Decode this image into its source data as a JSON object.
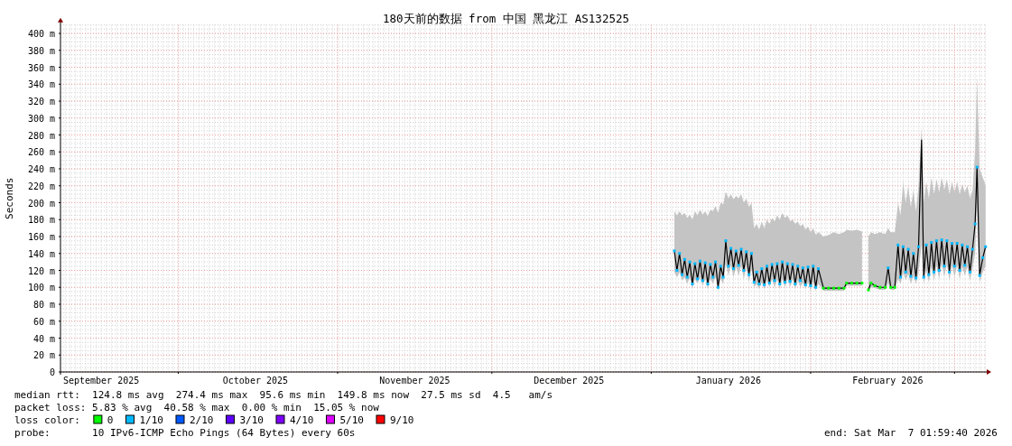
{
  "chart_data": {
    "type": "line",
    "title": "180天前的数据 from 中国 黑龙江 AS132525",
    "ylabel": "Seconds",
    "xlim": [
      "2025-09-08T02:00",
      "2026-03-07T02:00"
    ],
    "xticks": [
      {
        "value": "2025-10-01",
        "label": null
      },
      {
        "value": "2025-11-01",
        "label": null
      },
      {
        "value": "2025-12-01",
        "label": null
      },
      {
        "value": "2026-01-01",
        "label": null
      },
      {
        "value": "2026-02-01",
        "label": null
      },
      {
        "value": "2026-03-01",
        "label": null
      },
      {
        "value": "2025-09-16",
        "label": "September 2025"
      },
      {
        "value": "2025-10-16",
        "label": "October 2025"
      },
      {
        "value": "2025-11-16",
        "label": "November 2025"
      },
      {
        "value": "2025-12-16",
        "label": "December 2025"
      },
      {
        "value": "2026-01-16",
        "label": "January 2026"
      },
      {
        "value": "2026-02-16",
        "label": "February 2026"
      }
    ],
    "ylim": [
      0,
      410
    ],
    "yticks": [
      0,
      {
        "value": 20,
        "label": "20 m"
      },
      {
        "value": 40,
        "label": "40 m"
      },
      {
        "value": 60,
        "label": "60 m"
      },
      {
        "value": 80,
        "label": "80 m"
      },
      {
        "value": 100,
        "label": "100 m"
      },
      {
        "value": 120,
        "label": "120 m"
      },
      {
        "value": 140,
        "label": "140 m"
      },
      {
        "value": 160,
        "label": "160 m"
      },
      {
        "value": 180,
        "label": "180 m"
      },
      {
        "value": 200,
        "label": "200 m"
      },
      {
        "value": 220,
        "label": "220 m"
      },
      {
        "value": 240,
        "label": "240 m"
      },
      {
        "value": 260,
        "label": "260 m"
      },
      {
        "value": 280,
        "label": "280 m"
      },
      {
        "value": 300,
        "label": "300 m"
      },
      {
        "value": 320,
        "label": "320 m"
      },
      {
        "value": 340,
        "label": "340 m"
      },
      {
        "value": 360,
        "label": "360 m"
      },
      {
        "value": 380,
        "label": "380 m"
      },
      {
        "value": 400,
        "label": "400 m"
      }
    ],
    "grid": true,
    "legend": "bottom",
    "legend_title": "loss color:",
    "x": [
      "2026-01-05T12:00",
      "2026-01-06T00:00",
      "2026-01-06T12:00",
      "2026-01-07T00:00",
      "2026-01-07T12:00",
      "2026-01-08T00:00",
      "2026-01-08T12:00",
      "2026-01-09T00:00",
      "2026-01-09T12:00",
      "2026-01-10T00:00",
      "2026-01-10T12:00",
      "2026-01-11T00:00",
      "2026-01-11T12:00",
      "2026-01-12T00:00",
      "2026-01-12T12:00",
      "2026-01-13T00:00",
      "2026-01-13T12:00",
      "2026-01-14T00:00",
      "2026-01-14T12:00",
      "2026-01-15T00:00",
      "2026-01-15T12:00",
      "2026-01-16T00:00",
      "2026-01-16T12:00",
      "2026-01-17T00:00",
      "2026-01-17T12:00",
      "2026-01-18T00:00",
      "2026-01-18T12:00",
      "2026-01-19T00:00",
      "2026-01-19T12:00",
      "2026-01-20T00:00",
      "2026-01-20T12:00",
      "2026-01-21T00:00",
      "2026-01-21T12:00",
      "2026-01-22T00:00",
      "2026-01-22T12:00",
      "2026-01-23T00:00",
      "2026-01-23T12:00",
      "2026-01-24T00:00",
      "2026-01-24T12:00",
      "2026-01-25T00:00",
      "2026-01-25T12:00",
      "2026-01-26T00:00",
      "2026-01-26T12:00",
      "2026-01-27T00:00",
      "2026-01-27T12:00",
      "2026-01-28T00:00",
      "2026-01-28T12:00",
      "2026-01-29T00:00",
      "2026-01-29T12:00",
      "2026-01-30T00:00",
      "2026-01-30T12:00",
      "2026-01-31T00:00",
      "2026-01-31T12:00",
      "2026-02-01T00:00",
      "2026-02-01T12:00",
      "2026-02-02T00:00",
      "2026-02-02T12:00",
      "2026-02-03T12:00",
      "2026-02-04T12:00",
      "2026-02-05T12:00",
      "2026-02-06T12:00",
      "2026-02-07T12:00",
      "2026-02-08T00:00",
      "2026-02-09T00:00",
      "2026-02-10T00:00",
      "2026-02-11T00:00",
      "2026-02-11T12:00",
      "2026-02-12T06:00",
      "2026-02-12T18:00",
      "2026-02-13T12:00",
      "2026-02-14T12:00",
      "2026-02-15T12:00",
      "2026-02-16T02:00",
      "2026-02-16T14:00",
      "2026-02-17T09:00",
      "2026-02-18T00:00",
      "2026-02-18T12:00",
      "2026-02-19T00:00",
      "2026-02-19T12:00",
      "2026-02-20T00:00",
      "2026-02-20T12:00",
      "2026-02-21T00:00",
      "2026-02-21T12:00",
      "2026-02-22T00:00",
      "2026-02-22T14:00",
      "2026-02-23T00:00",
      "2026-02-23T12:00",
      "2026-02-24T00:00",
      "2026-02-24T12:00",
      "2026-02-25T00:00",
      "2026-02-25T12:00",
      "2026-02-26T00:00",
      "2026-02-26T12:00",
      "2026-02-27T00:00",
      "2026-02-27T12:00",
      "2026-02-28T00:00",
      "2026-02-28T12:00",
      "2026-03-01T00:00",
      "2026-03-01T12:00",
      "2026-03-02T00:00",
      "2026-03-02T12:00",
      "2026-03-03T00:00",
      "2026-03-03T12:00",
      "2026-03-04T00:00",
      "2026-03-04T12:00",
      "2026-03-05T00:00",
      "2026-03-05T09:00",
      "2026-03-05T21:00",
      "2026-03-06T12:00",
      "2026-03-07T01:00"
    ],
    "series": [
      {
        "color": "#000000",
        "values": [
          143,
          120,
          140,
          115,
          133,
          112,
          130,
          104,
          128,
          110,
          131,
          108,
          129,
          104,
          127,
          112,
          130,
          100,
          125,
          112,
          155,
          125,
          146,
          122,
          143,
          126,
          145,
          120,
          142,
          115,
          140,
          106,
          118,
          104,
          122,
          103,
          125,
          105,
          127,
          108,
          128,
          104,
          130,
          106,
          128,
          107,
          127,
          104,
          125,
          108,
          123,
          103,
          124,
          102,
          125,
          100,
          122,
          99,
          99,
          99,
          99,
          99,
          105,
          105,
          105,
          105,
          null,
          97,
          105,
          102,
          100,
          100,
          123,
          100,
          100,
          150,
          112,
          148,
          118,
          145,
          113,
          140,
          111,
          148,
          274,
          112,
          150,
          115,
          153,
          118,
          155,
          120,
          156,
          125,
          155,
          118,
          152,
          125,
          152,
          120,
          150,
          126,
          148,
          118,
          145,
          175,
          242,
          114,
          135,
          148
        ],
        "lower": [
          118,
          112,
          118,
          108,
          112,
          104,
          112,
          98,
          110,
          104,
          112,
          102,
          110,
          98,
          110,
          104,
          112,
          96,
          110,
          104,
          128,
          114,
          126,
          112,
          124,
          114,
          126,
          110,
          124,
          106,
          122,
          100,
          104,
          98,
          106,
          98,
          108,
          100,
          110,
          100,
          110,
          98,
          110,
          100,
          110,
          100,
          110,
          98,
          108,
          100,
          106,
          98,
          106,
          96,
          106,
          96,
          104,
          96,
          96,
          96,
          96,
          96,
          102,
          102,
          102,
          102,
          null,
          94,
          100,
          99,
          97,
          97,
          105,
          97,
          97,
          110,
          104,
          118,
          108,
          116,
          104,
          114,
          104,
          118,
          150,
          104,
          120,
          106,
          124,
          108,
          126,
          110,
          128,
          112,
          128,
          108,
          126,
          112,
          126,
          110,
          124,
          114,
          124,
          108,
          122,
          140,
          200,
          106,
          118,
          125
        ],
        "upper": [
          190,
          185,
          190,
          185,
          188,
          182,
          186,
          180,
          190,
          185,
          192,
          186,
          190,
          184,
          192,
          190,
          196,
          188,
          200,
          198,
          213,
          205,
          210,
          204,
          208,
          205,
          210,
          200,
          205,
          195,
          200,
          170,
          175,
          168,
          178,
          170,
          180,
          175,
          182,
          178,
          185,
          180,
          188,
          182,
          185,
          178,
          180,
          175,
          178,
          172,
          175,
          168,
          172,
          165,
          170,
          162,
          165,
          160,
          162,
          165,
          163,
          165,
          168,
          167,
          168,
          166,
          null,
          160,
          165,
          163,
          165,
          163,
          170,
          165,
          165,
          200,
          185,
          225,
          200,
          220,
          195,
          215,
          190,
          220,
          290,
          200,
          225,
          205,
          230,
          210,
          228,
          212,
          230,
          215,
          228,
          210,
          225,
          212,
          225,
          210,
          222,
          212,
          220,
          205,
          215,
          260,
          350,
          240,
          230,
          220
        ]
      },
      {
        "type": "scatter",
        "name": "0",
        "color": "#00ff00",
        "x": [
          "2026-02-03T12:00",
          "2026-02-04T12:00",
          "2026-02-05T12:00",
          "2026-02-06T12:00",
          "2026-02-07T12:00",
          "2026-02-08T00:00",
          "2026-02-09T00:00",
          "2026-02-10T00:00",
          "2026-02-11T00:00",
          "2026-02-12T06:00",
          "2026-02-12T18:00",
          "2026-02-13T12:00",
          "2026-02-14T12:00",
          "2026-02-15T12:00",
          "2026-02-16T14:00",
          "2026-02-17T09:00"
        ],
        "values": [
          99,
          99,
          99,
          99,
          99,
          105,
          105,
          105,
          105,
          97,
          105,
          102,
          100,
          100,
          100,
          100
        ]
      },
      {
        "type": "scatter",
        "name": "1/10",
        "color": "#00b8ff",
        "x": [
          "2026-01-05T12:00",
          "2026-01-06T00:00",
          "2026-01-06T12:00",
          "2026-01-07T00:00",
          "2026-01-07T12:00",
          "2026-01-08T00:00",
          "2026-01-08T12:00",
          "2026-01-09T00:00",
          "2026-01-09T12:00",
          "2026-01-10T00:00",
          "2026-01-10T12:00",
          "2026-01-11T00:00",
          "2026-01-11T12:00",
          "2026-01-12T00:00",
          "2026-01-12T12:00",
          "2026-01-13T00:00",
          "2026-01-13T12:00",
          "2026-01-14T00:00",
          "2026-01-14T12:00",
          "2026-01-15T00:00",
          "2026-01-15T12:00",
          "2026-01-16T00:00",
          "2026-01-16T12:00",
          "2026-01-17T00:00",
          "2026-01-17T12:00",
          "2026-01-18T00:00",
          "2026-01-18T12:00",
          "2026-01-19T00:00",
          "2026-01-19T12:00",
          "2026-01-20T00:00",
          "2026-01-20T12:00",
          "2026-01-21T00:00",
          "2026-01-21T12:00",
          "2026-01-22T00:00",
          "2026-01-22T12:00",
          "2026-01-23T00:00",
          "2026-01-23T12:00",
          "2026-01-24T00:00",
          "2026-01-24T12:00",
          "2026-01-25T00:00",
          "2026-01-25T12:00",
          "2026-01-26T00:00",
          "2026-01-26T12:00",
          "2026-01-27T00:00",
          "2026-01-27T12:00",
          "2026-01-28T00:00",
          "2026-01-28T12:00",
          "2026-01-29T00:00",
          "2026-01-29T12:00",
          "2026-01-30T00:00",
          "2026-01-30T12:00",
          "2026-01-31T00:00",
          "2026-01-31T12:00",
          "2026-02-01T00:00",
          "2026-02-01T12:00",
          "2026-02-02T00:00",
          "2026-02-02T12:00",
          "2026-02-16T02:00",
          "2026-02-18T00:00",
          "2026-02-18T12:00",
          "2026-02-19T00:00",
          "2026-02-19T12:00",
          "2026-02-20T00:00",
          "2026-02-20T12:00",
          "2026-02-21T00:00",
          "2026-02-21T12:00",
          "2026-02-22T00:00",
          "2026-02-23T00:00",
          "2026-02-23T12:00",
          "2026-02-24T00:00",
          "2026-02-24T12:00",
          "2026-02-25T00:00",
          "2026-02-25T12:00",
          "2026-02-26T00:00",
          "2026-02-26T12:00",
          "2026-02-27T00:00",
          "2026-02-27T12:00",
          "2026-02-28T00:00",
          "2026-02-28T12:00",
          "2026-03-01T00:00",
          "2026-03-01T12:00",
          "2026-03-02T00:00",
          "2026-03-02T12:00",
          "2026-03-03T00:00",
          "2026-03-03T12:00",
          "2026-03-04T00:00",
          "2026-03-04T12:00",
          "2026-03-05T00:00",
          "2026-03-05T09:00",
          "2026-03-05T21:00",
          "2026-03-06T12:00",
          "2026-03-07T01:00"
        ],
        "values": [
          143,
          120,
          140,
          115,
          133,
          112,
          130,
          104,
          128,
          110,
          131,
          108,
          129,
          104,
          127,
          112,
          130,
          100,
          125,
          112,
          155,
          125,
          146,
          122,
          143,
          126,
          145,
          120,
          142,
          115,
          140,
          106,
          118,
          104,
          122,
          103,
          125,
          105,
          127,
          108,
          128,
          104,
          130,
          106,
          128,
          107,
          127,
          104,
          125,
          108,
          123,
          103,
          124,
          102,
          125,
          100,
          122,
          123,
          150,
          112,
          148,
          118,
          145,
          113,
          140,
          111,
          148,
          112,
          150,
          115,
          153,
          118,
          155,
          120,
          156,
          125,
          155,
          118,
          152,
          125,
          152,
          120,
          150,
          126,
          148,
          118,
          145,
          175,
          242,
          114,
          135,
          148
        ]
      },
      {
        "type": "scatter",
        "name": "2/10",
        "color": "#0059ff",
        "values": [
          null,
          null,
          null,
          null,
          null,
          null,
          null,
          null,
          null,
          null,
          null,
          null,
          null,
          null,
          null,
          null,
          null,
          null,
          null,
          null,
          null,
          null,
          null,
          null,
          null,
          null,
          null,
          null,
          null,
          null,
          null,
          null,
          null,
          null,
          null,
          null,
          null,
          null,
          null,
          null,
          null,
          null,
          null,
          null,
          null,
          null,
          null,
          null,
          null,
          null,
          null,
          null,
          null,
          null,
          null,
          null,
          null,
          null,
          null,
          null,
          null,
          null,
          null,
          null,
          null,
          null,
          null,
          null,
          null,
          null,
          null,
          null,
          null,
          null,
          null,
          null,
          null,
          null,
          null,
          null,
          null,
          null,
          null,
          null,
          null,
          null,
          null,
          null,
          null,
          null,
          null,
          null,
          null,
          null,
          null,
          null,
          null,
          null,
          null,
          null,
          null,
          null,
          null,
          null,
          null,
          null,
          null,
          null,
          null,
          null
        ]
      },
      {
        "type": "scatter",
        "name": "3/10",
        "color": "#5e00ff",
        "values": [
          null,
          null,
          null,
          null,
          null,
          null,
          null,
          null,
          null,
          null,
          null,
          null,
          null,
          null,
          null,
          null,
          null,
          null,
          null,
          null,
          null,
          null,
          null,
          null,
          null,
          null,
          null,
          null,
          null,
          null,
          null,
          null,
          null,
          null,
          null,
          null,
          null,
          null,
          null,
          null,
          null,
          null,
          null,
          null,
          null,
          null,
          null,
          null,
          null,
          null,
          null,
          null,
          null,
          null,
          null,
          null,
          null,
          null,
          null,
          null,
          null,
          null,
          null,
          null,
          null,
          null,
          null,
          null,
          null,
          null,
          null,
          null,
          null,
          null,
          null,
          null,
          null,
          null,
          null,
          null,
          null,
          null,
          null,
          null,
          null,
          null,
          null,
          null,
          null,
          null,
          null,
          null,
          null,
          null,
          null,
          null,
          null,
          null,
          null,
          null,
          null,
          null,
          null,
          null,
          null,
          null,
          null,
          null,
          null,
          null
        ]
      },
      {
        "type": "scatter",
        "name": "4/10",
        "color": "#7e00ff",
        "values": [
          null,
          null,
          null,
          null,
          null,
          null,
          null,
          null,
          null,
          null,
          null,
          null,
          null,
          null,
          null,
          null,
          null,
          null,
          null,
          null,
          null,
          null,
          null,
          null,
          null,
          null,
          null,
          null,
          null,
          null,
          null,
          null,
          null,
          null,
          null,
          null,
          null,
          null,
          null,
          null,
          null,
          null,
          null,
          null,
          null,
          null,
          null,
          null,
          null,
          null,
          null,
          null,
          null,
          null,
          null,
          null,
          null,
          null,
          null,
          null,
          null,
          null,
          null,
          null,
          null,
          null,
          null,
          null,
          null,
          null,
          null,
          null,
          null,
          null,
          null,
          null,
          null,
          null,
          null,
          null,
          null,
          null,
          null,
          null,
          null,
          null,
          null,
          null,
          null,
          null,
          null,
          null,
          null,
          null,
          null,
          null,
          null,
          null,
          null,
          null,
          null,
          null,
          null,
          null,
          null,
          null,
          null,
          null,
          null,
          null
        ]
      },
      {
        "type": "scatter",
        "name": "5/10",
        "color": "#dd00ff",
        "values": [
          null,
          null,
          null,
          null,
          null,
          null,
          null,
          null,
          null,
          null,
          null,
          null,
          null,
          null,
          null,
          null,
          null,
          null,
          null,
          null,
          null,
          null,
          null,
          null,
          null,
          null,
          null,
          null,
          null,
          null,
          null,
          null,
          null,
          null,
          null,
          null,
          null,
          null,
          null,
          null,
          null,
          null,
          null,
          null,
          null,
          null,
          null,
          null,
          null,
          null,
          null,
          null,
          null,
          null,
          null,
          null,
          null,
          null,
          null,
          null,
          null,
          null,
          null,
          null,
          null,
          null,
          null,
          null,
          null,
          null,
          null,
          null,
          null,
          null,
          null,
          null,
          null,
          null,
          null,
          null,
          null,
          null,
          null,
          null,
          null,
          null,
          null,
          null,
          null,
          null,
          null,
          null,
          null,
          null,
          null,
          null,
          null,
          null,
          null,
          null,
          null,
          null,
          null,
          null,
          null,
          null,
          null,
          null,
          null,
          null
        ]
      },
      {
        "type": "scatter",
        "name": "9/10",
        "color": "#ff0000",
        "values": [
          null,
          null,
          null,
          null,
          null,
          null,
          null,
          null,
          null,
          null,
          null,
          null,
          null,
          null,
          null,
          null,
          null,
          null,
          null,
          null,
          null,
          null,
          null,
          null,
          null,
          null,
          null,
          null,
          null,
          null,
          null,
          null,
          null,
          null,
          null,
          null,
          null,
          null,
          null,
          null,
          null,
          null,
          null,
          null,
          null,
          null,
          null,
          null,
          null,
          null,
          null,
          null,
          null,
          null,
          null,
          null,
          null,
          null,
          null,
          null,
          null,
          null,
          null,
          null,
          null,
          null,
          null,
          null,
          null,
          null,
          null,
          null,
          null,
          null,
          null,
          null,
          null,
          null,
          null,
          null,
          null,
          null,
          null,
          null,
          null,
          null,
          null,
          null,
          null,
          null,
          null,
          null,
          null,
          null,
          null,
          null,
          null,
          null,
          null,
          null,
          null,
          null,
          null,
          null,
          null,
          null,
          null,
          null,
          null,
          null
        ]
      }
    ],
    "annotations": [
      "median rtt:  124.8 ms avg  274.4 ms max  95.6 ms min  149.8 ms now  27.5 ms sd  4.5   am/s",
      "packet loss: 5.83 % avg  40.58 % max  0.00 % min  15.05 % now",
      "probe:       10 IPv6-ICMP Echo Pings (64 Bytes) every 60s",
      "end: Sat Mar  7 01:59:40 2026"
    ]
  }
}
